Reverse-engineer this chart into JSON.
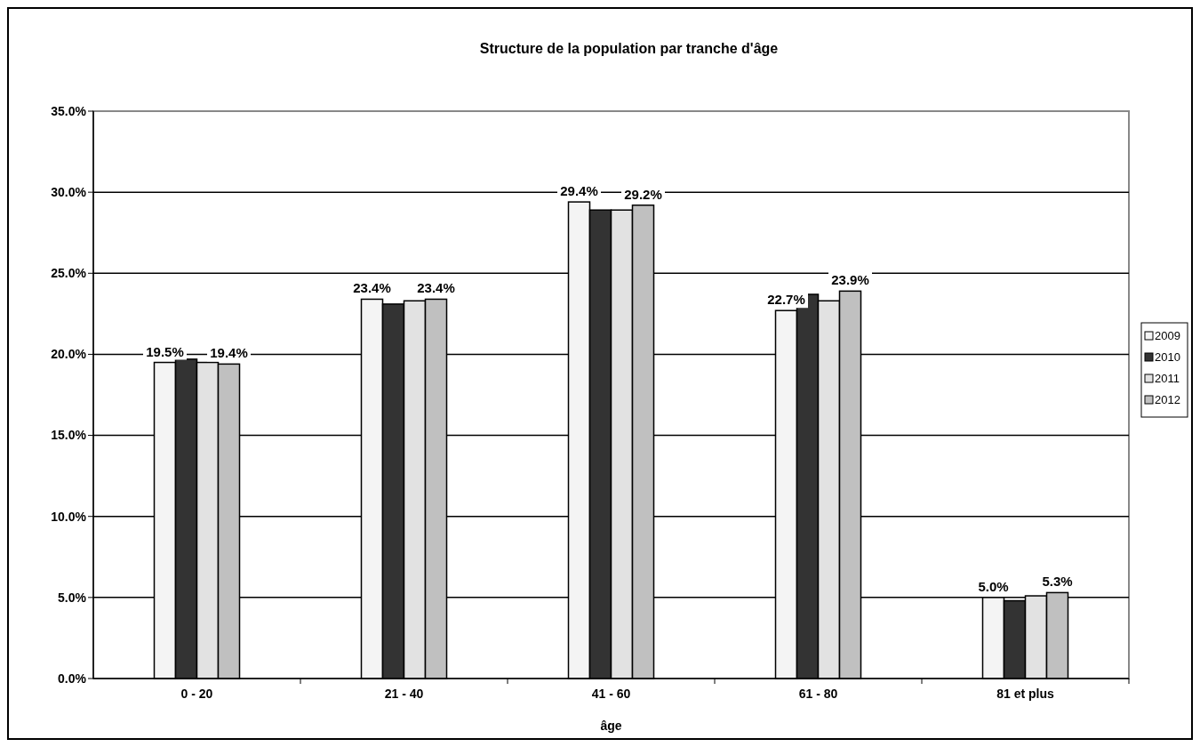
{
  "chart_data": {
    "type": "bar",
    "title": "Structure de la population par tranche d'âge",
    "xlabel": "âge",
    "categories": [
      "0 - 20",
      "21 - 40",
      "41 - 60",
      "61 - 80",
      "81 et plus"
    ],
    "series": [
      {
        "name": "2009",
        "color": "#f4f4f4",
        "values": [
          19.5,
          23.4,
          29.4,
          22.7,
          5.0
        ],
        "value_labels": [
          "19.5%",
          "23.4%",
          "29.4%",
          "22.7%",
          "5.0%"
        ]
      },
      {
        "name": "2010",
        "color": "#333333",
        "values": [
          19.7,
          23.1,
          28.9,
          23.7,
          4.8
        ]
      },
      {
        "name": "2011",
        "color": "#e2e2e2",
        "values": [
          19.5,
          23.3,
          28.9,
          23.3,
          5.1
        ]
      },
      {
        "name": "2012",
        "color": "#c0c0c0",
        "values": [
          19.4,
          23.4,
          29.2,
          23.9,
          5.3
        ],
        "value_labels": [
          "19.4%",
          "23.4%",
          "29.2%",
          "23.9%",
          "5.3%"
        ]
      }
    ],
    "ylim": [
      0,
      35
    ],
    "yticks": [
      {
        "value": 0,
        "label": "0.0%"
      },
      {
        "value": 5,
        "label": "5.0%"
      },
      {
        "value": 10,
        "label": "10.0%"
      },
      {
        "value": 15,
        "label": "15.0%"
      },
      {
        "value": 20,
        "label": "20.0%"
      },
      {
        "value": 25,
        "label": "25.0%"
      },
      {
        "value": 30,
        "label": "30.0%"
      },
      {
        "value": 35,
        "label": "35.0%"
      }
    ],
    "grid": "y",
    "legend": "right"
  }
}
